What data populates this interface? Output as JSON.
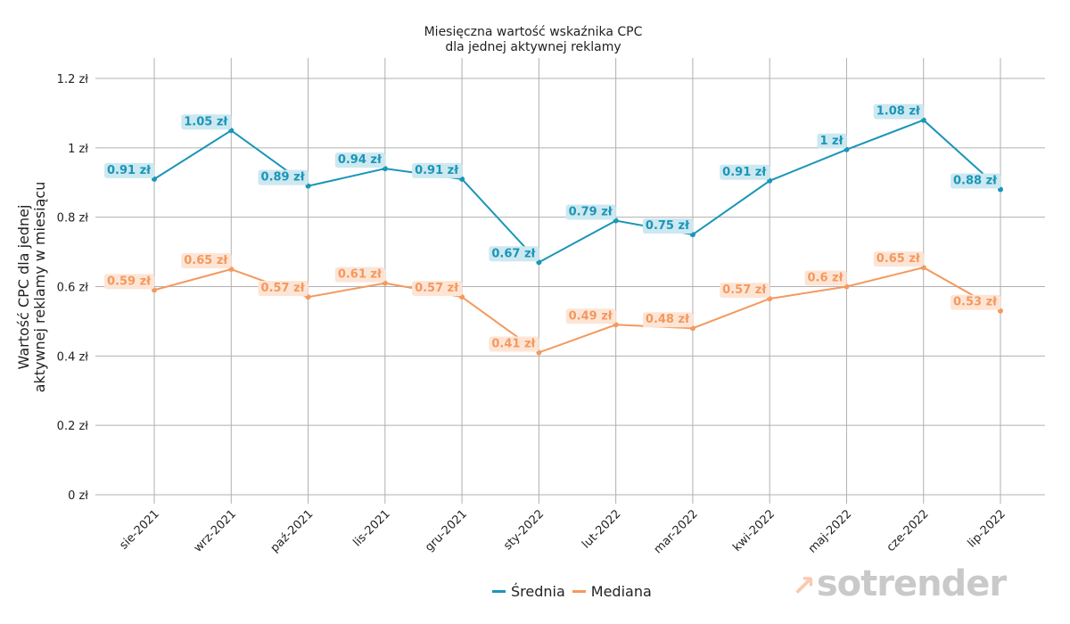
{
  "chart_data": {
    "type": "line",
    "title": [
      "Miesięczna wartość wskaźnika CPC",
      "dla jednej aktywnej reklamy"
    ],
    "xlabel": "",
    "ylabel": [
      "Wartość CPC dla jednej",
      "aktywnej reklamy w miesiącu"
    ],
    "ylim": [
      0,
      1.2
    ],
    "yticks": [
      0,
      0.2,
      0.4,
      0.6,
      0.8,
      1,
      1.2
    ],
    "ytick_labels": [
      "0 zł",
      "0.2 zł",
      "0.4 zł",
      "0.6 zł",
      "0.8 zł",
      "1 zł",
      "1.2 zł"
    ],
    "grid": true,
    "legend_position": "bottom-center",
    "categories": [
      "sie-2021",
      "wrz-2021",
      "paź-2021",
      "lis-2021",
      "gru-2021",
      "sty-2022",
      "lut-2022",
      "mar-2022",
      "kwi-2022",
      "maj-2022",
      "cze-2022",
      "lip-2022"
    ],
    "series": [
      {
        "name": "Średnia",
        "color": "#1a96b8",
        "label_bg": "#cde8f0",
        "values": [
          0.91,
          1.05,
          0.89,
          0.94,
          0.91,
          0.67,
          0.79,
          0.75,
          0.905,
          0.995,
          1.08,
          0.88
        ],
        "labels": [
          "0.91 zł",
          "1.05 zł",
          "0.89 zł",
          "0.94 zł",
          "0.91 zł",
          "0.67 zł",
          "0.79 zł",
          "0.75 zł",
          "0.91 zł",
          "1 zł",
          "1.08 zł",
          "0.88 zł"
        ]
      },
      {
        "name": "Mediana",
        "color": "#f4995e",
        "label_bg": "#fde5d6",
        "values": [
          0.59,
          0.65,
          0.57,
          0.61,
          0.57,
          0.41,
          0.49,
          0.48,
          0.565,
          0.6,
          0.655,
          0.53
        ],
        "labels": [
          "0.59 zł",
          "0.65 zł",
          "0.57 zł",
          "0.61 zł",
          "0.57 zł",
          "0.41 zł",
          "0.49 zł",
          "0.48 zł",
          "0.57 zł",
          "0.6 zł",
          "0.65 zł",
          "0.53 zł"
        ]
      }
    ]
  },
  "legend": {
    "items": [
      {
        "label": "Średnia",
        "color": "#1a96b8"
      },
      {
        "label": "Mediana",
        "color": "#f4995e"
      }
    ]
  },
  "branding": {
    "logo_text": "sotrender",
    "logo_mark": "trend-arrow-icon"
  }
}
